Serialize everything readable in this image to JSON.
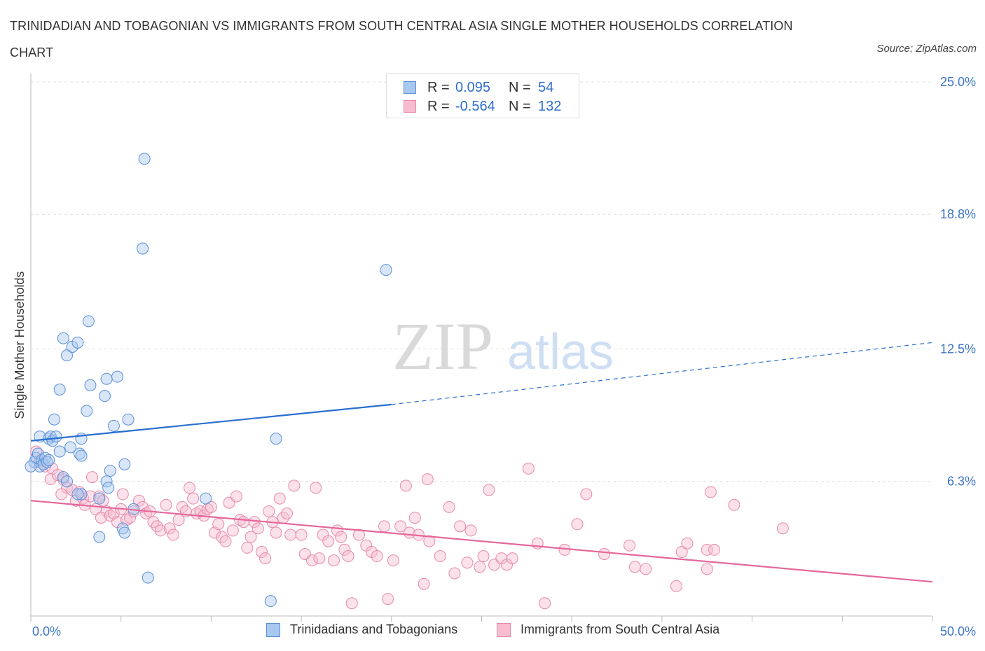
{
  "title": "TRINIDADIAN AND TOBAGONIAN VS IMMIGRANTS FROM SOUTH CENTRAL ASIA SINGLE MOTHER HOUSEHOLDS CORRELATION CHART",
  "source": "Source: ZipAtlas.com",
  "watermark": {
    "zip": "ZIP",
    "atlas": "atlas"
  },
  "legend": {
    "r_label": "R =",
    "n_label": "N =",
    "series": [
      {
        "r": "0.095",
        "n": "54"
      },
      {
        "r": "-0.564",
        "n": "132"
      }
    ]
  },
  "colors": {
    "blue_fill": "#a9c8f0",
    "blue_stroke": "#5b8fd9",
    "blue_line": "#2a6fd0",
    "pink_fill": "#f7bcd0",
    "pink_stroke": "#e889ab",
    "pink_line": "#e5679a",
    "tick_text": "#3b74c9",
    "grid": "#dddddd"
  },
  "chart_data": {
    "type": "scatter",
    "title": "TRINIDADIAN AND TOBAGONIAN VS IMMIGRANTS FROM SOUTH CENTRAL ASIA SINGLE MOTHER HOUSEHOLDS CORRELATION CHART",
    "xlabel": "",
    "ylabel": "Single Mother Households",
    "xlim": [
      0,
      50
    ],
    "ylim": [
      0,
      25
    ],
    "x_tick_labels": [
      "0.0%",
      "50.0%"
    ],
    "y_ticks": [
      6.3,
      12.5,
      18.8,
      25.0
    ],
    "y_tick_labels": [
      "6.3%",
      "12.5%",
      "18.8%",
      "25.0%"
    ],
    "grid": "horizontal dashed",
    "legend_placement": "bottom-center",
    "series": [
      {
        "name": "Trinidadians and Tobagonians",
        "r": 0.095,
        "n": 54,
        "trend": {
          "x0": 0,
          "y0": 8.2,
          "x1": 20,
          "y1": 9.9,
          "dashed_to_x": 50,
          "dashed_to_y": 12.8
        },
        "points": [
          [
            0.2,
            7.2
          ],
          [
            0.3,
            7.4
          ],
          [
            0.4,
            7.6
          ],
          [
            0.5,
            7.0
          ],
          [
            0.6,
            7.3
          ],
          [
            0.7,
            7.1
          ],
          [
            0.8,
            7.4
          ],
          [
            0.9,
            7.2
          ],
          [
            1.0,
            7.3
          ],
          [
            0.5,
            8.4
          ],
          [
            1.0,
            8.3
          ],
          [
            1.1,
            8.4
          ],
          [
            1.2,
            8.2
          ],
          [
            1.4,
            8.4
          ],
          [
            1.3,
            9.2
          ],
          [
            1.6,
            7.7
          ],
          [
            1.8,
            6.5
          ],
          [
            2.0,
            6.3
          ],
          [
            1.8,
            13.0
          ],
          [
            2.0,
            12.2
          ],
          [
            2.3,
            12.6
          ],
          [
            2.6,
            12.8
          ],
          [
            1.6,
            10.6
          ],
          [
            2.2,
            7.9
          ],
          [
            2.7,
            7.6
          ],
          [
            2.8,
            8.3
          ],
          [
            2.8,
            7.5
          ],
          [
            3.2,
            13.8
          ],
          [
            3.1,
            9.6
          ],
          [
            3.3,
            10.8
          ],
          [
            4.1,
            10.3
          ],
          [
            4.2,
            11.1
          ],
          [
            4.8,
            11.2
          ],
          [
            4.6,
            8.9
          ],
          [
            5.4,
            9.2
          ],
          [
            5.2,
            7.1
          ],
          [
            4.4,
            6.8
          ],
          [
            4.2,
            6.3
          ],
          [
            4.3,
            6.0
          ],
          [
            3.8,
            5.5
          ],
          [
            5.7,
            5.0
          ],
          [
            5.1,
            4.1
          ],
          [
            5.2,
            3.9
          ],
          [
            3.8,
            3.7
          ],
          [
            6.5,
            1.8
          ],
          [
            6.3,
            21.4
          ],
          [
            6.2,
            17.2
          ],
          [
            9.7,
            5.5
          ],
          [
            13.6,
            8.3
          ],
          [
            13.3,
            0.7
          ],
          [
            19.7,
            16.2
          ],
          [
            2.8,
            5.7
          ],
          [
            0.0,
            7.0
          ],
          [
            2.6,
            5.7
          ]
        ]
      },
      {
        "name": "Immigrants from South Central Asia",
        "r": -0.564,
        "n": 132,
        "trend": {
          "x0": 0,
          "y0": 5.4,
          "x1": 50,
          "y1": 1.6
        },
        "points": [
          [
            0.3,
            7.7
          ],
          [
            0.5,
            7.2
          ],
          [
            0.8,
            7.0
          ],
          [
            1.2,
            6.9
          ],
          [
            1.1,
            6.4
          ],
          [
            1.5,
            6.6
          ],
          [
            1.8,
            6.4
          ],
          [
            2.0,
            6.0
          ],
          [
            1.7,
            5.7
          ],
          [
            2.3,
            5.9
          ],
          [
            2.7,
            5.8
          ],
          [
            2.5,
            5.4
          ],
          [
            2.9,
            5.5
          ],
          [
            3.0,
            5.2
          ],
          [
            3.3,
            5.6
          ],
          [
            3.4,
            6.5
          ],
          [
            3.6,
            5.0
          ],
          [
            3.8,
            5.6
          ],
          [
            4.0,
            5.4
          ],
          [
            4.2,
            4.9
          ],
          [
            3.9,
            4.6
          ],
          [
            4.4,
            4.7
          ],
          [
            4.6,
            4.8
          ],
          [
            4.8,
            4.4
          ],
          [
            5.0,
            5.0
          ],
          [
            5.1,
            5.7
          ],
          [
            5.3,
            4.5
          ],
          [
            5.5,
            4.6
          ],
          [
            5.7,
            4.9
          ],
          [
            6.0,
            5.4
          ],
          [
            6.2,
            5.1
          ],
          [
            6.4,
            4.8
          ],
          [
            6.6,
            4.9
          ],
          [
            6.8,
            4.4
          ],
          [
            7.0,
            4.2
          ],
          [
            7.2,
            4.0
          ],
          [
            7.5,
            5.2
          ],
          [
            7.7,
            4.1
          ],
          [
            7.9,
            3.8
          ],
          [
            8.2,
            4.5
          ],
          [
            8.4,
            5.1
          ],
          [
            8.6,
            4.9
          ],
          [
            8.8,
            6.0
          ],
          [
            9.0,
            5.5
          ],
          [
            9.2,
            4.8
          ],
          [
            9.4,
            4.9
          ],
          [
            9.6,
            4.7
          ],
          [
            9.8,
            5.0
          ],
          [
            10.0,
            5.1
          ],
          [
            10.2,
            3.9
          ],
          [
            10.4,
            4.3
          ],
          [
            10.6,
            3.7
          ],
          [
            10.8,
            3.5
          ],
          [
            11.0,
            5.3
          ],
          [
            11.2,
            4.0
          ],
          [
            11.4,
            5.6
          ],
          [
            11.6,
            4.5
          ],
          [
            11.8,
            4.4
          ],
          [
            12.0,
            3.2
          ],
          [
            12.2,
            3.7
          ],
          [
            12.4,
            4.4
          ],
          [
            12.6,
            4.1
          ],
          [
            12.8,
            3.0
          ],
          [
            13.0,
            2.7
          ],
          [
            13.2,
            4.9
          ],
          [
            13.4,
            4.4
          ],
          [
            13.6,
            3.9
          ],
          [
            13.8,
            5.5
          ],
          [
            14.0,
            4.6
          ],
          [
            14.2,
            4.8
          ],
          [
            14.4,
            3.8
          ],
          [
            14.6,
            6.1
          ],
          [
            15.0,
            3.8
          ],
          [
            15.2,
            2.9
          ],
          [
            15.6,
            2.6
          ],
          [
            15.8,
            6.0
          ],
          [
            16.0,
            2.7
          ],
          [
            16.2,
            3.8
          ],
          [
            16.5,
            3.5
          ],
          [
            16.8,
            2.6
          ],
          [
            17.0,
            4.0
          ],
          [
            17.2,
            3.7
          ],
          [
            17.4,
            3.1
          ],
          [
            17.6,
            2.8
          ],
          [
            17.8,
            0.6
          ],
          [
            18.2,
            3.8
          ],
          [
            18.6,
            3.3
          ],
          [
            18.9,
            3.0
          ],
          [
            19.2,
            2.8
          ],
          [
            19.6,
            4.2
          ],
          [
            19.8,
            0.8
          ],
          [
            20.1,
            2.6
          ],
          [
            20.5,
            4.2
          ],
          [
            20.8,
            6.1
          ],
          [
            21.0,
            3.9
          ],
          [
            21.3,
            4.6
          ],
          [
            21.5,
            3.8
          ],
          [
            21.8,
            1.5
          ],
          [
            22.0,
            6.4
          ],
          [
            22.1,
            3.5
          ],
          [
            22.7,
            2.8
          ],
          [
            23.2,
            5.1
          ],
          [
            23.5,
            2.0
          ],
          [
            23.8,
            4.2
          ],
          [
            24.2,
            2.5
          ],
          [
            24.4,
            4.0
          ],
          [
            24.9,
            2.3
          ],
          [
            25.1,
            2.8
          ],
          [
            25.4,
            5.9
          ],
          [
            25.7,
            2.4
          ],
          [
            26.1,
            2.7
          ],
          [
            26.4,
            2.4
          ],
          [
            26.7,
            2.7
          ],
          [
            27.6,
            6.9
          ],
          [
            28.1,
            3.4
          ],
          [
            29.6,
            3.1
          ],
          [
            30.3,
            4.3
          ],
          [
            30.8,
            5.7
          ],
          [
            31.8,
            2.9
          ],
          [
            33.2,
            3.3
          ],
          [
            33.5,
            2.3
          ],
          [
            34.1,
            2.2
          ],
          [
            35.8,
            1.4
          ],
          [
            36.1,
            3.0
          ],
          [
            36.4,
            3.4
          ],
          [
            37.5,
            3.1
          ],
          [
            37.5,
            2.2
          ],
          [
            37.7,
            5.8
          ],
          [
            37.9,
            3.1
          ],
          [
            39.0,
            5.2
          ],
          [
            41.7,
            4.1
          ],
          [
            28.5,
            0.6
          ]
        ]
      }
    ]
  },
  "bottom_legend": [
    "Trinidadians and Tobagonians",
    "Immigrants from South Central Asia"
  ]
}
